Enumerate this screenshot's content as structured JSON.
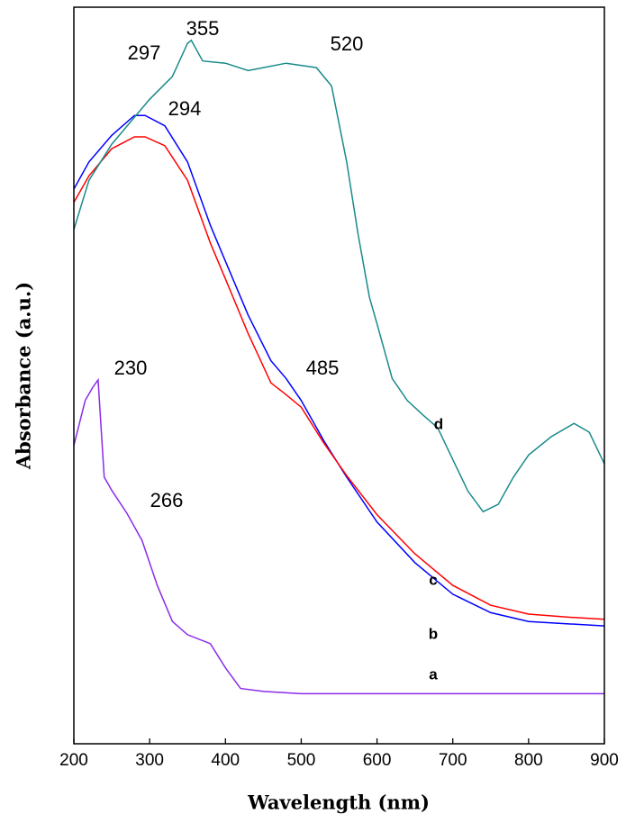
{
  "chart_data": {
    "type": "line",
    "x_label": "Wavelength (nm)",
    "y_label": "Absorbance (a.u.)",
    "xlim": [
      200,
      900
    ],
    "xticks": [
      200,
      300,
      400,
      500,
      600,
      700,
      800,
      900
    ],
    "ylim": [
      0,
      1
    ],
    "annotations": [
      "297",
      "355",
      "520",
      "294",
      "230",
      "266",
      "485"
    ],
    "series": [
      {
        "name": "a",
        "color": "#8b2be8",
        "x": [
          200,
          215,
          225,
          232,
          240,
          250,
          270,
          290,
          310,
          330,
          350,
          380,
          400,
          420,
          450,
          500,
          600,
          700,
          800,
          900
        ],
        "values": [
          0.405,
          0.466,
          0.484,
          0.494,
          0.362,
          0.344,
          0.313,
          0.276,
          0.215,
          0.166,
          0.148,
          0.136,
          0.103,
          0.075,
          0.071,
          0.068,
          0.068,
          0.068,
          0.068,
          0.068
        ]
      },
      {
        "name": "b",
        "color": "#0000ff",
        "x": [
          200,
          220,
          250,
          280,
          294,
          320,
          350,
          380,
          400,
          430,
          460,
          480,
          500,
          530,
          560,
          600,
          650,
          700,
          750,
          800,
          850,
          900
        ],
        "values": [
          0.753,
          0.79,
          0.826,
          0.853,
          0.853,
          0.839,
          0.79,
          0.704,
          0.655,
          0.582,
          0.52,
          0.496,
          0.466,
          0.411,
          0.362,
          0.301,
          0.246,
          0.203,
          0.178,
          0.166,
          0.163,
          0.16
        ]
      },
      {
        "name": "c",
        "color": "#ff0000",
        "x": [
          200,
          220,
          250,
          280,
          294,
          320,
          350,
          380,
          400,
          430,
          460,
          480,
          500,
          530,
          560,
          600,
          650,
          700,
          750,
          800,
          850,
          900
        ],
        "values": [
          0.735,
          0.771,
          0.808,
          0.824,
          0.824,
          0.812,
          0.765,
          0.68,
          0.631,
          0.557,
          0.49,
          0.474,
          0.457,
          0.408,
          0.364,
          0.311,
          0.258,
          0.215,
          0.188,
          0.176,
          0.172,
          0.169
        ]
      },
      {
        "name": "d",
        "color": "#1a8a8a",
        "x": [
          200,
          220,
          250,
          300,
          330,
          350,
          355,
          370,
          400,
          430,
          450,
          480,
          520,
          540,
          560,
          575,
          590,
          600,
          620,
          640,
          660,
          680,
          700,
          720,
          740,
          760,
          780,
          800,
          830,
          860,
          880,
          900
        ],
        "values": [
          0.698,
          0.765,
          0.814,
          0.875,
          0.906,
          0.951,
          0.955,
          0.927,
          0.924,
          0.914,
          0.918,
          0.924,
          0.918,
          0.893,
          0.79,
          0.692,
          0.606,
          0.57,
          0.496,
          0.466,
          0.447,
          0.429,
          0.386,
          0.343,
          0.315,
          0.325,
          0.362,
          0.392,
          0.417,
          0.435,
          0.423,
          0.38
        ]
      }
    ]
  }
}
